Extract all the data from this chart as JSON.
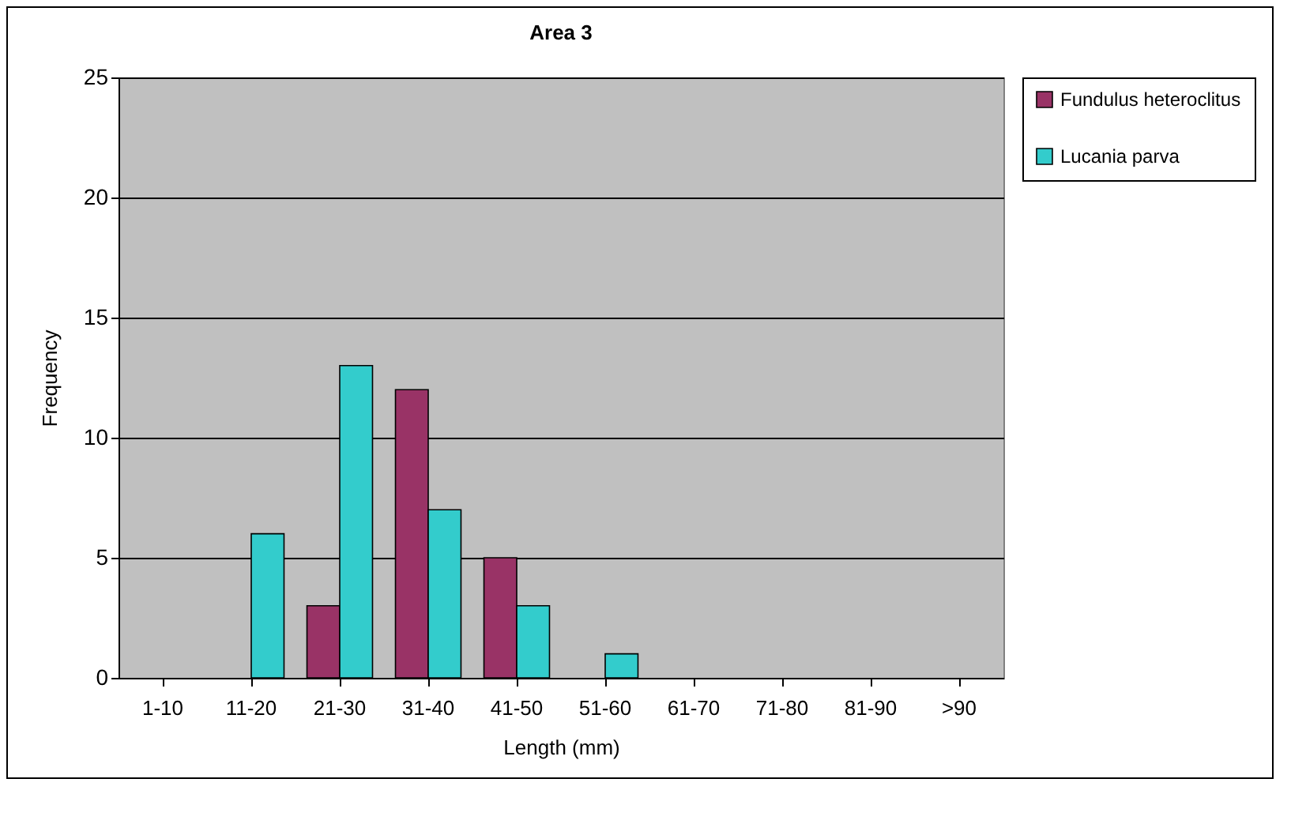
{
  "chart_data": {
    "type": "bar",
    "title": "Area 3",
    "xlabel": "Length (mm)",
    "ylabel": "Frequency",
    "categories": [
      "1-10",
      "11-20",
      "21-30",
      "31-40",
      "41-50",
      "51-60",
      "61-70",
      "71-80",
      "81-90",
      ">90"
    ],
    "series": [
      {
        "name": "Fundulus heteroclitus",
        "color": "#993366",
        "values": [
          0,
          0,
          3,
          12,
          5,
          0,
          0,
          0,
          0,
          0
        ]
      },
      {
        "name": "Lucania parva",
        "color": "#33cccc",
        "values": [
          0,
          6,
          13,
          7,
          3,
          1,
          0,
          0,
          0,
          0
        ]
      }
    ],
    "ylim": [
      0,
      25
    ],
    "yticks": [
      0,
      5,
      10,
      15,
      20,
      25
    ],
    "grid": "y",
    "legend": "top right"
  }
}
